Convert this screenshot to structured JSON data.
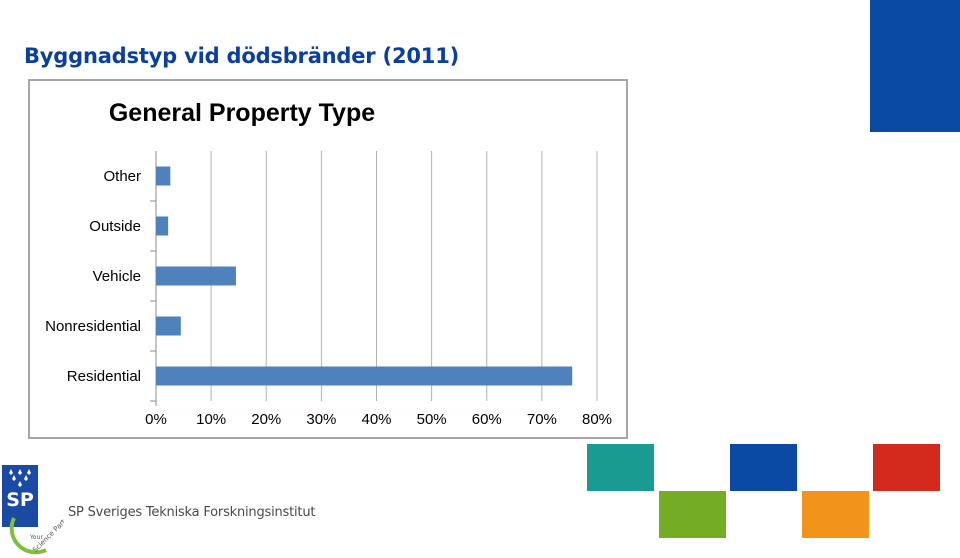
{
  "slide": {
    "title": "Byggnadstyp vid dödsbränder (2011)",
    "organization": "SP Sveriges Tekniska Forskningsinstitut",
    "logo_letters": "SP",
    "logo_tagline_1": "Your",
    "logo_tagline_2": "Science Partner"
  },
  "colors": {
    "title": "#0a3ea0",
    "bar": "#4f81bd",
    "gridline": "#b3b3b3",
    "frame": "#a6a6a6",
    "tile_blue": "#0b4aa4",
    "tile_teal": "#1a9b92",
    "tile_green": "#74ac24",
    "tile_orange": "#f2941a",
    "tile_red": "#d42a1e",
    "logo": "#1a4aa3",
    "logo_green": "#7fbf3a"
  },
  "chart_data": {
    "type": "bar",
    "orientation": "horizontal",
    "title": "General Property Type",
    "categories": [
      "Residential",
      "Nonresidential",
      "Vehicle",
      "Outside",
      "Other"
    ],
    "values": [
      75.5,
      4.5,
      14.5,
      2.2,
      2.6
    ],
    "unit": "%",
    "xlim": [
      0,
      80
    ],
    "xticks": [
      "0%",
      "10%",
      "20%",
      "30%",
      "40%",
      "50%",
      "60%",
      "70%",
      "80%"
    ],
    "grid": true,
    "legend": false
  }
}
